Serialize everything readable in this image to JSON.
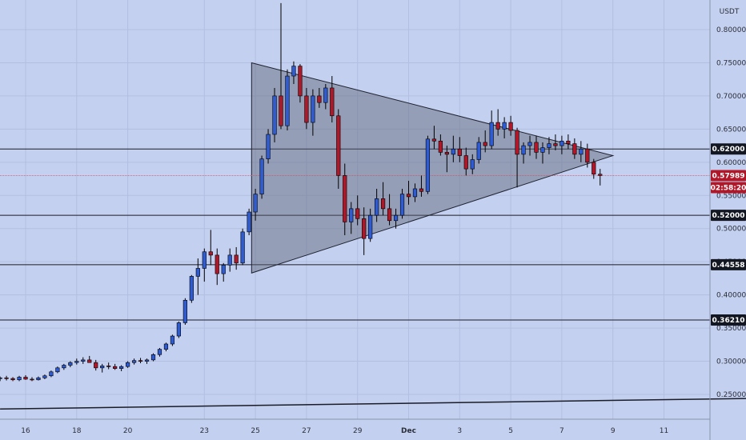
{
  "chart_data": {
    "type": "candlestick",
    "currency_label": "USDT",
    "y_axis": {
      "min": 0.225,
      "max": 0.83,
      "ticks": [
        0.25,
        0.3,
        0.35,
        0.4,
        0.45,
        0.5,
        0.55,
        0.6,
        0.65,
        0.7,
        0.75,
        0.8
      ],
      "tick_labels": [
        "0.25000",
        "0.30000",
        "0.35000",
        "0.40000",
        "0.45000",
        "0.50000",
        "0.55000",
        "0.60000",
        "0.65000",
        "0.70000",
        "0.75000",
        "0.80000"
      ]
    },
    "x_axis": {
      "start_day": 15,
      "end_day": 47,
      "tick_labels": [
        {
          "day": 16,
          "label": "16"
        },
        {
          "day": 18,
          "label": "18"
        },
        {
          "day": 20,
          "label": "20"
        },
        {
          "day": 23,
          "label": "23"
        },
        {
          "day": 25,
          "label": "25"
        },
        {
          "day": 27,
          "label": "27"
        },
        {
          "day": 29,
          "label": "29"
        },
        {
          "day": 31,
          "label": "Dec"
        },
        {
          "day": 33,
          "label": "3"
        },
        {
          "day": 35,
          "label": "5"
        },
        {
          "day": 37,
          "label": "7"
        },
        {
          "day": 39,
          "label": "9"
        },
        {
          "day": 41,
          "label": "11"
        }
      ]
    },
    "horizontal_levels": [
      {
        "value": 0.62,
        "label": "0.62000"
      },
      {
        "value": 0.52,
        "label": "0.52000"
      },
      {
        "value": 0.44558,
        "label": "0.44558"
      },
      {
        "value": 0.3621,
        "label": "0.36210"
      }
    ],
    "current_price": {
      "value": 0.57989,
      "label": "0.57989",
      "countdown": "02:58:20"
    },
    "triangle": [
      {
        "day": 24.85,
        "value": 0.75
      },
      {
        "day": 39.0,
        "value": 0.61
      },
      {
        "day": 24.85,
        "value": 0.433
      }
    ],
    "trendline": [
      {
        "day": 15.0,
        "value": 0.228
      },
      {
        "day": 46.5,
        "value": 0.245
      }
    ],
    "candles": [
      [
        15.0,
        0.274,
        0.277,
        0.27,
        0.275
      ],
      [
        15.25,
        0.275,
        0.278,
        0.271,
        0.274
      ],
      [
        15.5,
        0.274,
        0.276,
        0.27,
        0.272
      ],
      [
        15.75,
        0.272,
        0.278,
        0.27,
        0.276
      ],
      [
        16.0,
        0.276,
        0.279,
        0.272,
        0.273
      ],
      [
        16.25,
        0.273,
        0.276,
        0.27,
        0.272
      ],
      [
        16.5,
        0.272,
        0.277,
        0.271,
        0.275
      ],
      [
        16.75,
        0.275,
        0.28,
        0.273,
        0.278
      ],
      [
        17.0,
        0.278,
        0.286,
        0.276,
        0.284
      ],
      [
        17.25,
        0.284,
        0.292,
        0.282,
        0.29
      ],
      [
        17.5,
        0.29,
        0.296,
        0.287,
        0.294
      ],
      [
        17.75,
        0.294,
        0.3,
        0.291,
        0.298
      ],
      [
        18.0,
        0.298,
        0.304,
        0.295,
        0.3
      ],
      [
        18.25,
        0.3,
        0.306,
        0.296,
        0.302
      ],
      [
        18.5,
        0.302,
        0.308,
        0.299,
        0.298
      ],
      [
        18.75,
        0.298,
        0.302,
        0.286,
        0.29
      ],
      [
        19.0,
        0.29,
        0.296,
        0.283,
        0.293
      ],
      [
        19.25,
        0.293,
        0.298,
        0.288,
        0.292
      ],
      [
        19.5,
        0.292,
        0.296,
        0.287,
        0.289
      ],
      [
        19.75,
        0.289,
        0.294,
        0.285,
        0.292
      ],
      [
        20.0,
        0.292,
        0.3,
        0.29,
        0.298
      ],
      [
        20.25,
        0.298,
        0.304,
        0.295,
        0.301
      ],
      [
        20.5,
        0.301,
        0.305,
        0.297,
        0.3
      ],
      [
        20.75,
        0.3,
        0.304,
        0.296,
        0.302
      ],
      [
        21.0,
        0.302,
        0.312,
        0.3,
        0.31
      ],
      [
        21.25,
        0.31,
        0.32,
        0.307,
        0.318
      ],
      [
        21.5,
        0.318,
        0.328,
        0.315,
        0.326
      ],
      [
        21.75,
        0.326,
        0.34,
        0.323,
        0.338
      ],
      [
        22.0,
        0.338,
        0.36,
        0.335,
        0.358
      ],
      [
        22.25,
        0.358,
        0.395,
        0.355,
        0.392
      ],
      [
        22.5,
        0.392,
        0.43,
        0.388,
        0.428
      ],
      [
        22.75,
        0.428,
        0.455,
        0.4,
        0.44
      ],
      [
        23.0,
        0.44,
        0.47,
        0.42,
        0.465
      ],
      [
        23.25,
        0.465,
        0.498,
        0.445,
        0.46
      ],
      [
        23.5,
        0.46,
        0.47,
        0.415,
        0.432
      ],
      [
        23.75,
        0.432,
        0.448,
        0.42,
        0.445
      ],
      [
        24.0,
        0.445,
        0.47,
        0.435,
        0.46
      ],
      [
        24.25,
        0.46,
        0.472,
        0.438,
        0.448
      ],
      [
        24.5,
        0.448,
        0.5,
        0.445,
        0.495
      ],
      [
        24.75,
        0.495,
        0.53,
        0.49,
        0.525
      ],
      [
        25.0,
        0.525,
        0.56,
        0.512,
        0.552
      ],
      [
        25.25,
        0.552,
        0.61,
        0.545,
        0.605
      ],
      [
        25.5,
        0.605,
        0.65,
        0.598,
        0.642
      ],
      [
        25.75,
        0.642,
        0.712,
        0.63,
        0.7
      ],
      [
        26.0,
        0.7,
        0.84,
        0.65,
        0.655
      ],
      [
        26.25,
        0.655,
        0.74,
        0.648,
        0.73
      ],
      [
        26.5,
        0.73,
        0.752,
        0.718,
        0.745
      ],
      [
        26.75,
        0.745,
        0.748,
        0.69,
        0.7
      ],
      [
        27.0,
        0.7,
        0.712,
        0.65,
        0.66
      ],
      [
        27.25,
        0.66,
        0.71,
        0.64,
        0.7
      ],
      [
        27.5,
        0.7,
        0.712,
        0.682,
        0.69
      ],
      [
        27.75,
        0.69,
        0.718,
        0.68,
        0.712
      ],
      [
        28.0,
        0.712,
        0.73,
        0.66,
        0.67
      ],
      [
        28.25,
        0.67,
        0.68,
        0.56,
        0.58
      ],
      [
        28.5,
        0.58,
        0.598,
        0.49,
        0.51
      ],
      [
        28.75,
        0.51,
        0.54,
        0.492,
        0.53
      ],
      [
        29.0,
        0.53,
        0.55,
        0.505,
        0.515
      ],
      [
        29.25,
        0.515,
        0.532,
        0.46,
        0.485
      ],
      [
        29.5,
        0.485,
        0.53,
        0.48,
        0.52
      ],
      [
        29.75,
        0.52,
        0.56,
        0.51,
        0.545
      ],
      [
        30.0,
        0.545,
        0.57,
        0.52,
        0.53
      ],
      [
        30.25,
        0.53,
        0.552,
        0.505,
        0.512
      ],
      [
        30.5,
        0.512,
        0.53,
        0.5,
        0.52
      ],
      [
        30.75,
        0.52,
        0.56,
        0.515,
        0.552
      ],
      [
        31.0,
        0.552,
        0.572,
        0.536,
        0.548
      ],
      [
        31.25,
        0.548,
        0.568,
        0.54,
        0.56
      ],
      [
        31.5,
        0.56,
        0.58,
        0.548,
        0.556
      ],
      [
        31.75,
        0.556,
        0.64,
        0.552,
        0.635
      ],
      [
        32.0,
        0.635,
        0.655,
        0.62,
        0.632
      ],
      [
        32.25,
        0.632,
        0.642,
        0.61,
        0.615
      ],
      [
        32.5,
        0.615,
        0.625,
        0.585,
        0.612
      ],
      [
        32.75,
        0.612,
        0.64,
        0.6,
        0.62
      ],
      [
        33.0,
        0.62,
        0.638,
        0.6,
        0.61
      ],
      [
        33.25,
        0.61,
        0.622,
        0.58,
        0.59
      ],
      [
        33.5,
        0.59,
        0.612,
        0.582,
        0.604
      ],
      [
        33.75,
        0.604,
        0.638,
        0.598,
        0.63
      ],
      [
        34.0,
        0.63,
        0.648,
        0.615,
        0.625
      ],
      [
        34.25,
        0.625,
        0.678,
        0.62,
        0.66
      ],
      [
        34.5,
        0.66,
        0.68,
        0.64,
        0.65
      ],
      [
        34.75,
        0.65,
        0.668,
        0.636,
        0.66
      ],
      [
        35.0,
        0.66,
        0.67,
        0.64,
        0.648
      ],
      [
        35.25,
        0.648,
        0.652,
        0.562,
        0.612
      ],
      [
        35.5,
        0.612,
        0.63,
        0.598,
        0.625
      ],
      [
        35.75,
        0.625,
        0.64,
        0.61,
        0.63
      ],
      [
        36.0,
        0.63,
        0.64,
        0.605,
        0.615
      ],
      [
        36.25,
        0.615,
        0.63,
        0.598,
        0.622
      ],
      [
        36.5,
        0.622,
        0.638,
        0.612,
        0.628
      ],
      [
        36.75,
        0.628,
        0.642,
        0.618,
        0.625
      ],
      [
        37.0,
        0.625,
        0.64,
        0.612,
        0.632
      ],
      [
        37.25,
        0.632,
        0.642,
        0.62,
        0.628
      ],
      [
        37.5,
        0.628,
        0.636,
        0.605,
        0.612
      ],
      [
        37.75,
        0.612,
        0.632,
        0.6,
        0.62
      ],
      [
        38.0,
        0.62,
        0.628,
        0.592,
        0.6
      ],
      [
        38.25,
        0.6,
        0.605,
        0.575,
        0.582
      ],
      [
        38.5,
        0.582,
        0.59,
        0.565,
        0.58
      ]
    ]
  }
}
